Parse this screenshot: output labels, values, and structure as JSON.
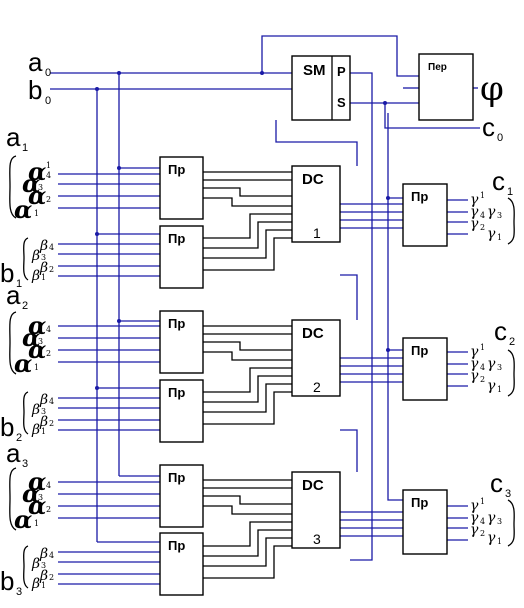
{
  "inputs": {
    "a0": {
      "letter": "a",
      "sub": "0"
    },
    "b0": {
      "letter": "b",
      "sub": "0"
    },
    "a1": {
      "letter": "a",
      "sub": "1"
    },
    "b1": {
      "letter": "b",
      "sub": "1"
    },
    "a2": {
      "letter": "a",
      "sub": "2"
    },
    "b2": {
      "letter": "b",
      "sub": "2"
    },
    "a3": {
      "letter": "a",
      "sub": "3"
    },
    "b3": {
      "letter": "b",
      "sub": "3"
    }
  },
  "blocks": {
    "sm": "SM",
    "sm_p": "P",
    "sm_s": "S",
    "per": "Пер",
    "pr": "Пр",
    "dc": "DC",
    "dc1_num": "1",
    "dc2_num": "2",
    "dc3_num": "3"
  },
  "outputs": {
    "phi": "φ",
    "c0": {
      "letter": "c",
      "sub": "0"
    },
    "c1": {
      "letter": "c",
      "sub": "1"
    },
    "c2": {
      "letter": "c",
      "sub": "2"
    },
    "c3": {
      "letter": "c",
      "sub": "3"
    }
  },
  "greek": {
    "alpha": "α",
    "beta": "β",
    "gamma": "γ",
    "idx1": "1",
    "idx2": "2",
    "idx3": "3",
    "idx4": "4"
  }
}
